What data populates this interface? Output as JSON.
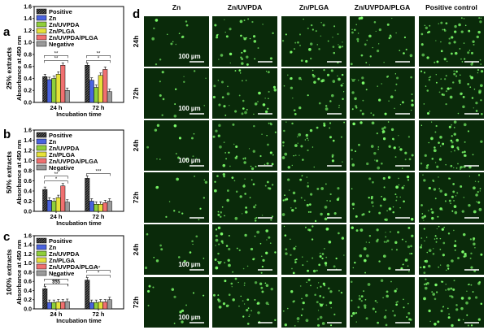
{
  "colors": {
    "positive": "#2f2f2f",
    "zn": "#4a63e0",
    "zn_uvpda": "#8fcf3a",
    "zn_plga": "#e6e23a",
    "zn_uvpda_plga": "#f07070",
    "negative": "#9a9a9a",
    "micrograph_bg": "#0a2a0a",
    "cell": "#7dff6a"
  },
  "panel_letters": [
    "a",
    "b",
    "c",
    "d"
  ],
  "chart_data": [
    {
      "type": "bar",
      "panel": "a",
      "row_label": "25% extracts",
      "ylabel": "Absorbance at 450 nm",
      "xlabel": "Incubation time",
      "categories": [
        "24 h",
        "72 h"
      ],
      "ylim": [
        0,
        1.6
      ],
      "yticks": [
        "0.0",
        "0.2",
        "0.4",
        "0.6",
        "0.8",
        "1.0",
        "1.2",
        "1.4",
        "1.6"
      ],
      "series": [
        {
          "name": "Positive",
          "values": [
            0.43,
            0.62
          ]
        },
        {
          "name": "Zn",
          "values": [
            0.38,
            0.37
          ]
        },
        {
          "name": "Zn/UVPDA",
          "values": [
            0.4,
            0.25
          ]
        },
        {
          "name": "Zn/PLGA",
          "values": [
            0.47,
            0.45
          ]
        },
        {
          "name": "Zn/UVPDA/PLGA",
          "values": [
            0.62,
            0.55
          ]
        },
        {
          "name": "Negative",
          "values": [
            0.2,
            0.18
          ]
        }
      ],
      "significance": [
        "**",
        "**",
        "*",
        "**"
      ]
    },
    {
      "type": "bar",
      "panel": "b",
      "row_label": "50% extracts",
      "ylabel": "Absorbance at 450 nm",
      "xlabel": "Incubation time",
      "categories": [
        "24 h",
        "72 h"
      ],
      "ylim": [
        0,
        1.6
      ],
      "yticks": [
        "0.0",
        "0.2",
        "0.4",
        "0.6",
        "0.8",
        "1.0",
        "1.2",
        "1.4",
        "1.6"
      ],
      "series": [
        {
          "name": "Positive",
          "values": [
            0.43,
            0.65
          ]
        },
        {
          "name": "Zn",
          "values": [
            0.22,
            0.2
          ]
        },
        {
          "name": "Zn/UVPDA",
          "values": [
            0.2,
            0.14
          ]
        },
        {
          "name": "Zn/PLGA",
          "values": [
            0.27,
            0.14
          ]
        },
        {
          "name": "Zn/UVPDA/PLGA",
          "values": [
            0.5,
            0.17
          ]
        },
        {
          "name": "Negative",
          "values": [
            0.18,
            0.2
          ]
        }
      ],
      "significance": [
        "*",
        "**",
        "***"
      ]
    },
    {
      "type": "bar",
      "panel": "c",
      "row_label": "100% extracts",
      "ylabel": "Absorbance at 450 nm",
      "xlabel": "Incubation time",
      "categories": [
        "24 h",
        "72 h"
      ],
      "ylim": [
        0,
        1.6
      ],
      "yticks": [
        "0.0",
        "0.2",
        "0.4",
        "0.6",
        "0.8",
        "1.0",
        "1.2",
        "1.4",
        "1.6"
      ],
      "series": [
        {
          "name": "Positive",
          "values": [
            0.44,
            0.63
          ]
        },
        {
          "name": "Zn",
          "values": [
            0.14,
            0.14
          ]
        },
        {
          "name": "Zn/UVPDA",
          "values": [
            0.14,
            0.14
          ]
        },
        {
          "name": "Zn/PLGA",
          "values": [
            0.15,
            0.15
          ]
        },
        {
          "name": "Zn/UVPDA/PLGA",
          "values": [
            0.15,
            0.15
          ]
        },
        {
          "name": "Negative",
          "values": [
            0.16,
            0.2
          ]
        }
      ],
      "significance": [
        "***",
        "***",
        "$$$",
        "**",
        "*"
      ]
    }
  ],
  "micrographs": {
    "columns": [
      "Zn",
      "Zn/UVPDA",
      "Zn/PLGA",
      "Zn/UVPDA/PLGA",
      "Positive control"
    ],
    "rows": [
      "24h",
      "72h",
      "24h",
      "72h",
      "24h",
      "72h"
    ],
    "scale_label": "100 µm"
  }
}
